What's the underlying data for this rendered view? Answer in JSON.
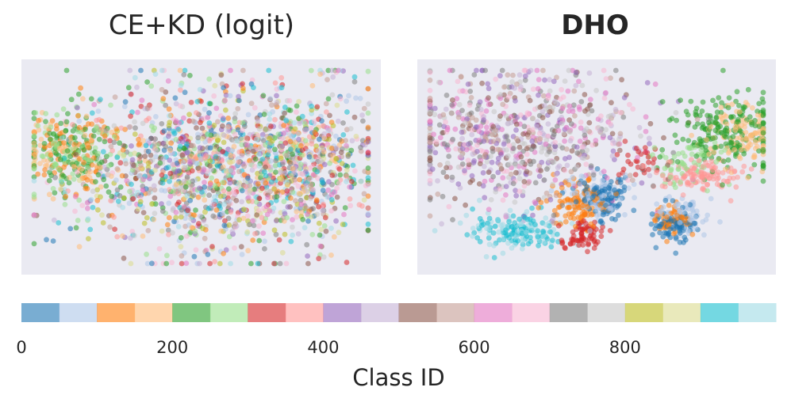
{
  "chart_data": [
    {
      "type": "scatter",
      "title": "CE+KD (logit)",
      "title_weight": "normal",
      "background": "#EAEAF2",
      "grid": false,
      "axes_ticks": false,
      "clusters": [
        {
          "class_range": [
            100,
            300
          ],
          "center": [
            -0.78,
            0.18
          ],
          "spread": [
            0.14,
            0.22
          ],
          "count": 320
        },
        {
          "class_range": [
            0,
            1000
          ],
          "center": [
            0.05,
            -0.02
          ],
          "spread": [
            0.42,
            0.42
          ],
          "count": 1400
        },
        {
          "class_range": [
            0,
            1000
          ],
          "center": [
            0.62,
            0.05
          ],
          "spread": [
            0.22,
            0.4
          ],
          "count": 420
        }
      ]
    },
    {
      "type": "scatter",
      "title": "DHO",
      "title_weight": "bold",
      "background": "#EAEAF2",
      "grid": false,
      "axes_ticks": false,
      "clusters": [
        {
          "class_range": [
            400,
            800
          ],
          "center": [
            -0.45,
            0.3
          ],
          "spread": [
            0.38,
            0.35
          ],
          "count": 800
        },
        {
          "class_range": [
            200,
            250
          ],
          "center": [
            0.78,
            0.4
          ],
          "spread": [
            0.15,
            0.2
          ],
          "count": 200
        },
        {
          "class_range": [
            150,
            200
          ],
          "center": [
            0.86,
            0.35
          ],
          "spread": [
            0.12,
            0.15
          ],
          "count": 110
        },
        {
          "class_range": [
            250,
            300
          ],
          "center": [
            0.52,
            0.05
          ],
          "spread": [
            0.1,
            0.12
          ],
          "count": 60
        },
        {
          "class_range": [
            350,
            400
          ],
          "center": [
            0.62,
            -0.1
          ],
          "spread": [
            0.12,
            0.08
          ],
          "count": 110
        },
        {
          "class_range": [
            300,
            350
          ],
          "center": [
            0.28,
            0.08
          ],
          "spread": [
            0.06,
            0.08
          ],
          "count": 30
        },
        {
          "class_range": [
            0,
            50
          ],
          "center": [
            0.05,
            -0.3
          ],
          "spread": [
            0.08,
            0.1
          ],
          "count": 110
        },
        {
          "class_range": [
            50,
            100
          ],
          "center": [
            0.0,
            -0.32
          ],
          "spread": [
            0.1,
            0.12
          ],
          "count": 100
        },
        {
          "class_range": [
            100,
            150
          ],
          "center": [
            -0.12,
            -0.38
          ],
          "spread": [
            0.08,
            0.14
          ],
          "count": 110
        },
        {
          "class_range": [
            300,
            350
          ],
          "center": [
            -0.08,
            -0.7
          ],
          "spread": [
            0.07,
            0.08
          ],
          "count": 70
        },
        {
          "class_range": [
            900,
            1000
          ],
          "center": [
            -0.5,
            -0.65
          ],
          "spread": [
            0.15,
            0.1
          ],
          "count": 170
        },
        {
          "class_range": [
            100,
            150
          ],
          "center": [
            0.45,
            -0.55
          ],
          "spread": [
            0.06,
            0.08
          ],
          "count": 60
        },
        {
          "class_range": [
            0,
            50
          ],
          "center": [
            0.46,
            -0.6
          ],
          "spread": [
            0.08,
            0.1
          ],
          "count": 80
        },
        {
          "class_range": [
            50,
            100
          ],
          "center": [
            0.52,
            -0.5
          ],
          "spread": [
            0.08,
            0.1
          ],
          "count": 70
        }
      ]
    }
  ],
  "colorbar": {
    "label": "Class ID",
    "range": [
      0,
      1000
    ],
    "ticks": [
      {
        "value": 0,
        "label": "0"
      },
      {
        "value": 200,
        "label": "200"
      },
      {
        "value": 400,
        "label": "400"
      },
      {
        "value": 600,
        "label": "600"
      },
      {
        "value": 800,
        "label": "800"
      }
    ],
    "colors": [
      "#1f77b4",
      "#aec7e8",
      "#ff7f0e",
      "#ffbb78",
      "#2ca02c",
      "#98df8a",
      "#d62728",
      "#ff9896",
      "#9467bd",
      "#c5b0d5",
      "#8c564b",
      "#c49c94",
      "#e377c2",
      "#f7b6d2",
      "#7f7f7f",
      "#c7c7c7",
      "#bcbd22",
      "#dbdb8d",
      "#17becf",
      "#9edae5"
    ]
  }
}
